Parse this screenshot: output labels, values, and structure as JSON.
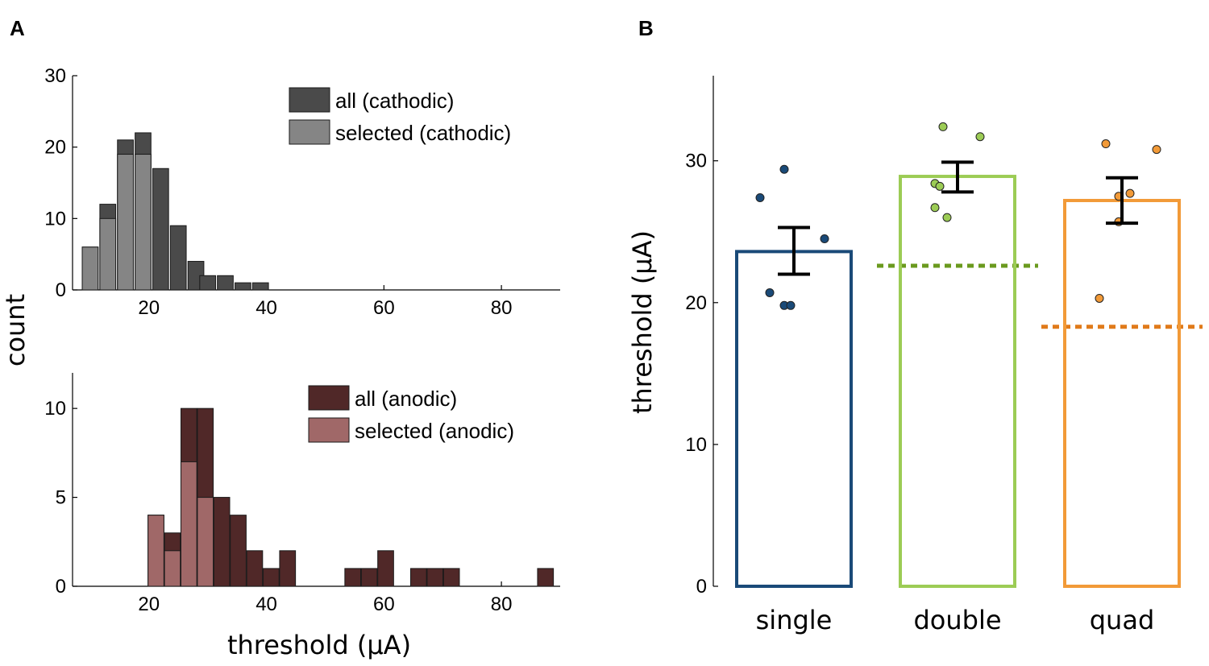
{
  "chart_data": [
    {
      "panel": "A",
      "type": "bar",
      "subtype": "stacked-histogram",
      "xlabel": "threshold (μA)",
      "ylabel": "count",
      "xlim": [
        7,
        90
      ],
      "ylim": [
        0,
        30
      ],
      "xticks": [
        20,
        40,
        60,
        80
      ],
      "yticks": [
        0,
        10,
        20,
        30
      ],
      "bin_width": 2.7,
      "legend_position": "top-right",
      "colors": {
        "all": "#4a4a4a",
        "selected": "#858585"
      },
      "series": [
        {
          "name": "all (cathodic)",
          "bins": [
            10,
            13,
            16,
            19,
            22,
            25,
            28,
            30,
            33,
            36,
            39
          ],
          "values": [
            6,
            12,
            21,
            22,
            17,
            9,
            4,
            2,
            2,
            1,
            1
          ]
        },
        {
          "name": "selected (cathodic)",
          "bins": [
            10,
            13,
            16,
            19
          ],
          "values": [
            6,
            10,
            19,
            19
          ]
        }
      ]
    },
    {
      "panel": "A",
      "type": "bar",
      "subtype": "stacked-histogram",
      "xlabel": "threshold (μA)",
      "ylabel": "count",
      "xlim": [
        7,
        90
      ],
      "ylim": [
        0,
        12
      ],
      "xticks": [
        20,
        40,
        60,
        80
      ],
      "yticks": [
        0,
        5,
        10
      ],
      "bin_width": 2.7,
      "legend_position": "top-right",
      "colors": {
        "all": "#502828",
        "selected": "#a06868"
      },
      "series": [
        {
          "name": "all (anodic)",
          "bins": [
            21.2,
            24,
            26.8,
            29.6,
            32.4,
            35.2,
            38,
            40.8,
            43.6,
            54.7,
            57.5,
            60.3,
            65.9,
            68.7,
            71.5,
            87.5
          ],
          "values": [
            4,
            3,
            10,
            10,
            5,
            4,
            2,
            1,
            2,
            1,
            1,
            2,
            1,
            1,
            1,
            1
          ]
        },
        {
          "name": "selected (anodic)",
          "bins": [
            21.2,
            24,
            26.8,
            29.6
          ],
          "values": [
            4,
            2,
            7,
            5
          ]
        }
      ]
    },
    {
      "panel": "B",
      "type": "bar",
      "categories": [
        "single",
        "double",
        "quad"
      ],
      "ylabel": "threshold (μA)",
      "ylim": [
        0,
        36
      ],
      "yticks": [
        0,
        10,
        20,
        30
      ],
      "colors": [
        "#1a4a78",
        "#9ccc55",
        "#f29a38"
      ],
      "values": [
        23.6,
        28.9,
        27.2
      ],
      "error": [
        [
          22.0,
          25.3
        ],
        [
          27.8,
          29.9
        ],
        [
          25.6,
          28.8
        ]
      ],
      "points": [
        [
          29.4,
          27.4,
          24.5,
          20.7,
          19.8,
          19.8
        ],
        [
          32.4,
          31.7,
          28.4,
          28.2,
          26.7,
          26.0
        ],
        [
          31.2,
          30.8,
          27.7,
          27.5,
          25.7,
          20.3
        ]
      ],
      "reference_lines": [
        null,
        22.6,
        18.3
      ],
      "reference_colors": [
        null,
        "#6a9a1e",
        "#e07a1a"
      ]
    }
  ],
  "labels": {
    "panel_a": "A",
    "panel_b": "B",
    "count_title": "count",
    "threshold_title": "threshold (μA)"
  }
}
